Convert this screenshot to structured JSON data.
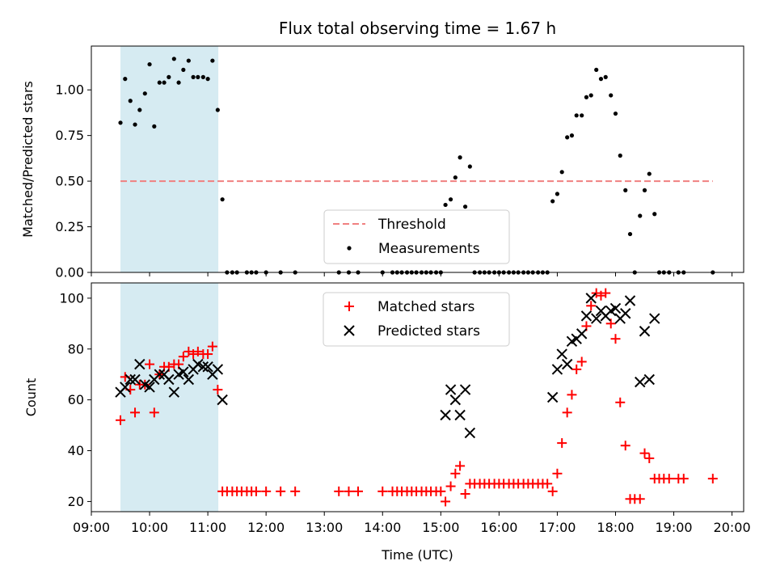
{
  "chart_data": [
    {
      "type": "scatter",
      "title": "Flux total observing time = 1.67 h",
      "xlabel": "",
      "ylabel": "Matched/Predicted stars",
      "x_units": "hours UTC",
      "xlim": [
        9.0,
        20.2
      ],
      "ylim": [
        0,
        1.24
      ],
      "yticks": [
        "0.00",
        "0.25",
        "0.50",
        "0.75",
        "1.00"
      ],
      "ytick_values": [
        0,
        0.25,
        0.5,
        0.75,
        1.0
      ],
      "highlight_span": [
        9.5,
        11.18
      ],
      "threshold": {
        "value": 0.5,
        "x_range": [
          9.5,
          19.67
        ],
        "color": "#f08080"
      },
      "legend": {
        "position": "lower-center",
        "entries": [
          "Threshold",
          "Measurements"
        ]
      },
      "series": [
        {
          "name": "Measurements",
          "color": "#000000",
          "points": [
            [
              9.5,
              0.82
            ],
            [
              9.58,
              1.06
            ],
            [
              9.67,
              0.94
            ],
            [
              9.75,
              0.81
            ],
            [
              9.83,
              0.89
            ],
            [
              9.92,
              0.98
            ],
            [
              10.0,
              1.14
            ],
            [
              10.08,
              0.8
            ],
            [
              10.17,
              1.04
            ],
            [
              10.25,
              1.04
            ],
            [
              10.33,
              1.07
            ],
            [
              10.42,
              1.17
            ],
            [
              10.5,
              1.04
            ],
            [
              10.58,
              1.11
            ],
            [
              10.67,
              1.16
            ],
            [
              10.75,
              1.07
            ],
            [
              10.83,
              1.07
            ],
            [
              10.92,
              1.07
            ],
            [
              11.0,
              1.06
            ],
            [
              11.08,
              1.16
            ],
            [
              11.17,
              0.89
            ],
            [
              11.25,
              0.4
            ],
            [
              11.33,
              0
            ],
            [
              11.42,
              0
            ],
            [
              11.5,
              0
            ],
            [
              11.67,
              0
            ],
            [
              11.75,
              0
            ],
            [
              11.83,
              0
            ],
            [
              12.0,
              0
            ],
            [
              12.25,
              0
            ],
            [
              12.5,
              0
            ],
            [
              13.25,
              0
            ],
            [
              13.42,
              0
            ],
            [
              13.58,
              0
            ],
            [
              14.0,
              0
            ],
            [
              14.17,
              0
            ],
            [
              14.25,
              0
            ],
            [
              14.33,
              0
            ],
            [
              14.42,
              0
            ],
            [
              14.5,
              0
            ],
            [
              14.58,
              0
            ],
            [
              14.67,
              0
            ],
            [
              14.75,
              0
            ],
            [
              14.83,
              0
            ],
            [
              14.92,
              0
            ],
            [
              15.0,
              0
            ],
            [
              15.08,
              0.37
            ],
            [
              15.17,
              0.4
            ],
            [
              15.25,
              0.52
            ],
            [
              15.33,
              0.63
            ],
            [
              15.42,
              0.36
            ],
            [
              15.5,
              0.58
            ],
            [
              15.58,
              0
            ],
            [
              15.67,
              0
            ],
            [
              15.75,
              0
            ],
            [
              15.83,
              0
            ],
            [
              15.92,
              0
            ],
            [
              16.0,
              0
            ],
            [
              16.08,
              0
            ],
            [
              16.17,
              0
            ],
            [
              16.25,
              0
            ],
            [
              16.33,
              0
            ],
            [
              16.42,
              0
            ],
            [
              16.5,
              0
            ],
            [
              16.58,
              0
            ],
            [
              16.67,
              0
            ],
            [
              16.75,
              0
            ],
            [
              16.83,
              0
            ],
            [
              16.92,
              0.39
            ],
            [
              17.0,
              0.43
            ],
            [
              17.08,
              0.55
            ],
            [
              17.17,
              0.74
            ],
            [
              17.25,
              0.75
            ],
            [
              17.33,
              0.86
            ],
            [
              17.42,
              0.86
            ],
            [
              17.5,
              0.96
            ],
            [
              17.58,
              0.97
            ],
            [
              17.67,
              1.11
            ],
            [
              17.75,
              1.06
            ],
            [
              17.83,
              1.07
            ],
            [
              17.92,
              0.97
            ],
            [
              18.0,
              0.87
            ],
            [
              18.08,
              0.64
            ],
            [
              18.17,
              0.45
            ],
            [
              18.25,
              0.21
            ],
            [
              18.33,
              0
            ],
            [
              18.42,
              0.31
            ],
            [
              18.5,
              0.45
            ],
            [
              18.58,
              0.54
            ],
            [
              18.67,
              0.32
            ],
            [
              18.75,
              0
            ],
            [
              18.83,
              0
            ],
            [
              18.92,
              0
            ],
            [
              19.08,
              0
            ],
            [
              19.17,
              0
            ],
            [
              19.67,
              0
            ]
          ]
        }
      ]
    },
    {
      "type": "scatter",
      "title": "",
      "xlabel": "Time (UTC)",
      "ylabel": "Count",
      "x_units": "hours UTC",
      "xlim": [
        9.0,
        20.2
      ],
      "ylim": [
        16,
        106
      ],
      "xticks": [
        "09:00",
        "10:00",
        "11:00",
        "12:00",
        "13:00",
        "14:00",
        "15:00",
        "16:00",
        "17:00",
        "18:00",
        "19:00",
        "20:00"
      ],
      "xtick_values": [
        9,
        10,
        11,
        12,
        13,
        14,
        15,
        16,
        17,
        18,
        19,
        20
      ],
      "yticks": [
        "20",
        "40",
        "60",
        "80",
        "100"
      ],
      "ytick_values": [
        20,
        40,
        60,
        80,
        100
      ],
      "highlight_span": [
        9.5,
        11.18
      ],
      "legend": {
        "position": "top-center",
        "entries": [
          "Matched stars",
          "Predicted stars"
        ]
      },
      "series": [
        {
          "name": "Matched stars",
          "marker": "plus",
          "color": "#ff0000",
          "points": [
            [
              9.5,
              52
            ],
            [
              9.58,
              69
            ],
            [
              9.67,
              64
            ],
            [
              9.75,
              55
            ],
            [
              9.83,
              66
            ],
            [
              9.92,
              66
            ],
            [
              10.0,
              74
            ],
            [
              10.08,
              55
            ],
            [
              10.17,
              70
            ],
            [
              10.25,
              73
            ],
            [
              10.33,
              73
            ],
            [
              10.42,
              74
            ],
            [
              10.5,
              74
            ],
            [
              10.58,
              77
            ],
            [
              10.67,
              79
            ],
            [
              10.75,
              78
            ],
            [
              10.83,
              79
            ],
            [
              10.92,
              78
            ],
            [
              11.0,
              78
            ],
            [
              11.08,
              81
            ],
            [
              11.17,
              64
            ],
            [
              11.25,
              24
            ],
            [
              11.33,
              24
            ],
            [
              11.42,
              24
            ],
            [
              11.5,
              24
            ],
            [
              11.58,
              24
            ],
            [
              11.67,
              24
            ],
            [
              11.75,
              24
            ],
            [
              11.83,
              24
            ],
            [
              12.0,
              24
            ],
            [
              12.25,
              24
            ],
            [
              12.5,
              24
            ],
            [
              13.25,
              24
            ],
            [
              13.42,
              24
            ],
            [
              13.58,
              24
            ],
            [
              14.0,
              24
            ],
            [
              14.17,
              24
            ],
            [
              14.25,
              24
            ],
            [
              14.33,
              24
            ],
            [
              14.42,
              24
            ],
            [
              14.5,
              24
            ],
            [
              14.58,
              24
            ],
            [
              14.67,
              24
            ],
            [
              14.75,
              24
            ],
            [
              14.83,
              24
            ],
            [
              14.92,
              24
            ],
            [
              15.0,
              24
            ],
            [
              15.08,
              20
            ],
            [
              15.17,
              26
            ],
            [
              15.25,
              31
            ],
            [
              15.33,
              34
            ],
            [
              15.42,
              23
            ],
            [
              15.5,
              27
            ],
            [
              15.58,
              27
            ],
            [
              15.67,
              27
            ],
            [
              15.75,
              27
            ],
            [
              15.83,
              27
            ],
            [
              15.92,
              27
            ],
            [
              16.0,
              27
            ],
            [
              16.08,
              27
            ],
            [
              16.17,
              27
            ],
            [
              16.25,
              27
            ],
            [
              16.33,
              27
            ],
            [
              16.42,
              27
            ],
            [
              16.5,
              27
            ],
            [
              16.58,
              27
            ],
            [
              16.67,
              27
            ],
            [
              16.75,
              27
            ],
            [
              16.83,
              27
            ],
            [
              16.92,
              24
            ],
            [
              17.0,
              31
            ],
            [
              17.08,
              43
            ],
            [
              17.17,
              55
            ],
            [
              17.25,
              62
            ],
            [
              17.33,
              72
            ],
            [
              17.42,
              75
            ],
            [
              17.5,
              89
            ],
            [
              17.58,
              97
            ],
            [
              17.67,
              102
            ],
            [
              17.75,
              101
            ],
            [
              17.83,
              102
            ],
            [
              17.92,
              90
            ],
            [
              18.0,
              84
            ],
            [
              18.08,
              59
            ],
            [
              18.17,
              42
            ],
            [
              18.25,
              21
            ],
            [
              18.33,
              21
            ],
            [
              18.42,
              21
            ],
            [
              18.5,
              39
            ],
            [
              18.58,
              37
            ],
            [
              18.67,
              29
            ],
            [
              18.75,
              29
            ],
            [
              18.83,
              29
            ],
            [
              18.92,
              29
            ],
            [
              19.08,
              29
            ],
            [
              19.17,
              29
            ],
            [
              19.67,
              29
            ]
          ]
        },
        {
          "name": "Predicted stars",
          "marker": "x",
          "color": "#000000",
          "points": [
            [
              9.5,
              63
            ],
            [
              9.58,
              65
            ],
            [
              9.67,
              68
            ],
            [
              9.75,
              68
            ],
            [
              9.83,
              74
            ],
            [
              9.92,
              66
            ],
            [
              10.0,
              65
            ],
            [
              10.08,
              68
            ],
            [
              10.17,
              70
            ],
            [
              10.25,
              70
            ],
            [
              10.33,
              68
            ],
            [
              10.42,
              63
            ],
            [
              10.5,
              70
            ],
            [
              10.58,
              71
            ],
            [
              10.67,
              68
            ],
            [
              10.75,
              72
            ],
            [
              10.83,
              74
            ],
            [
              10.92,
              73
            ],
            [
              11.0,
              73
            ],
            [
              11.08,
              70
            ],
            [
              11.17,
              72
            ],
            [
              11.25,
              60
            ],
            [
              15.08,
              54
            ],
            [
              15.17,
              64
            ],
            [
              15.25,
              60
            ],
            [
              15.33,
              54
            ],
            [
              15.42,
              64
            ],
            [
              15.5,
              47
            ],
            [
              16.92,
              61
            ],
            [
              17.0,
              72
            ],
            [
              17.08,
              78
            ],
            [
              17.17,
              74
            ],
            [
              17.25,
              83
            ],
            [
              17.33,
              84
            ],
            [
              17.42,
              86
            ],
            [
              17.5,
              93
            ],
            [
              17.58,
              100
            ],
            [
              17.67,
              92
            ],
            [
              17.75,
              95
            ],
            [
              17.83,
              93
            ],
            [
              17.92,
              95
            ],
            [
              18.0,
              96
            ],
            [
              18.08,
              92
            ],
            [
              18.17,
              94
            ],
            [
              18.25,
              99
            ],
            [
              18.42,
              67
            ],
            [
              18.5,
              87
            ],
            [
              18.58,
              68
            ],
            [
              18.67,
              92
            ]
          ]
        }
      ]
    }
  ]
}
